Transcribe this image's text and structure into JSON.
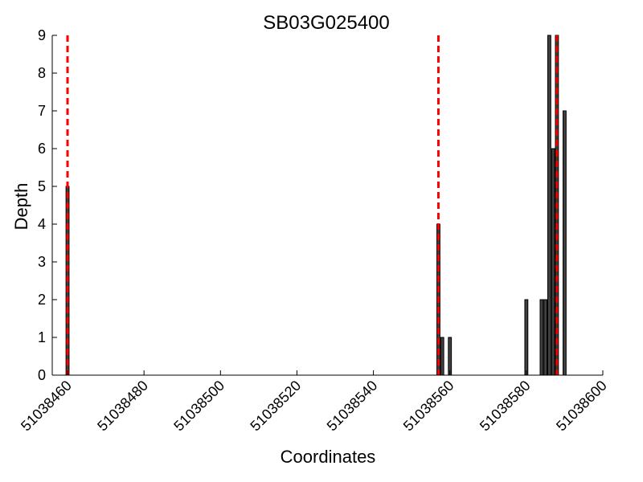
{
  "chart_data": {
    "type": "bar",
    "title": "SB03G025400",
    "xlabel": "Coordinates",
    "ylabel": "Depth",
    "xlim": [
      51038456,
      51038600
    ],
    "ylim": [
      0,
      9
    ],
    "x_ticks": [
      51038460,
      51038480,
      51038500,
      51038520,
      51038540,
      51038560,
      51038580,
      51038600
    ],
    "y_ticks": [
      0,
      1,
      2,
      3,
      4,
      5,
      6,
      7,
      8,
      9
    ],
    "grid": false,
    "bar_color": "#404040",
    "series": [
      {
        "x": [
          51038460,
          51038557,
          51038558,
          51038560,
          51038580,
          51038584,
          51038585,
          51038586,
          51038587,
          51038588,
          51038590
        ],
        "values": [
          5,
          4,
          1,
          1,
          2,
          2,
          2,
          9,
          6,
          9,
          7
        ]
      }
    ],
    "reference_lines": {
      "x": [
        51038460,
        51038557,
        51038588
      ],
      "color": "#ff0000",
      "style": "dashed"
    }
  }
}
